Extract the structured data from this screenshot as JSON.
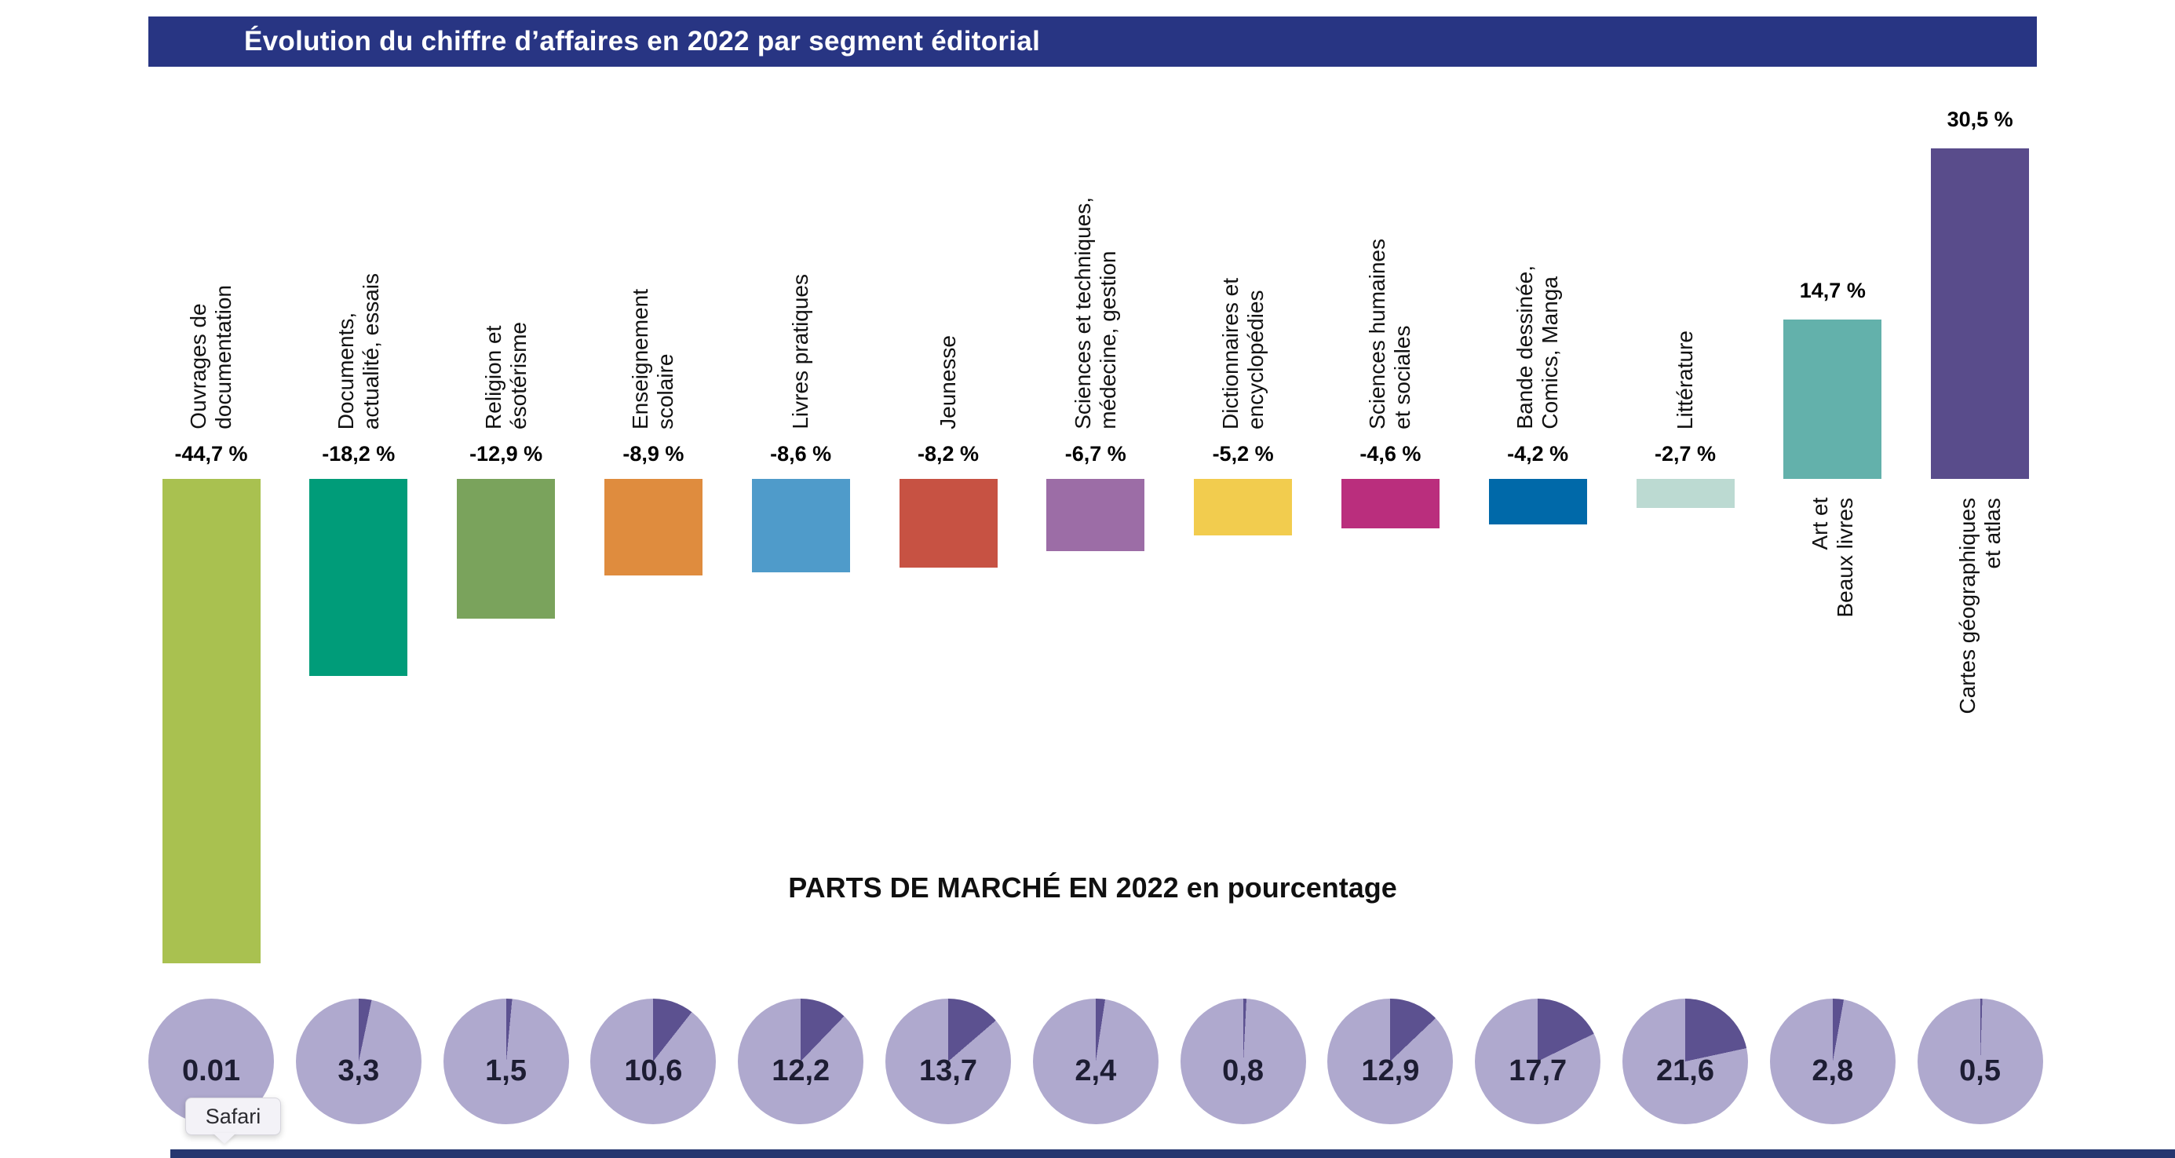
{
  "header": {
    "title": "Évolution du chiffre d’affaires en 2022 par segment éditorial",
    "bg_color": "#283583",
    "text_color": "#ffffff"
  },
  "chart_data": {
    "type": "bar",
    "title": "Évolution du chiffre d’affaires en 2022 par segment éditorial",
    "value_unit": "%",
    "baseline": 0,
    "pie_base_color": "#afa9ce",
    "pie_wedge_color": "#5c5190",
    "segments": [
      {
        "key": "ouvrages-de-documentation",
        "name_lines": [
          "Ouvrages de",
          "documentation"
        ],
        "evolution": -44.7,
        "evolution_label": "-44,7 %",
        "color": "#a9c150",
        "share": 0.01,
        "share_label": "0.01"
      },
      {
        "key": "documents-actualite-essais",
        "name_lines": [
          "Documents,",
          "actualité, essais"
        ],
        "evolution": -18.2,
        "evolution_label": "-18,2 %",
        "color": "#009c79",
        "share": 3.3,
        "share_label": "3,3"
      },
      {
        "key": "religion-et-esoterisme",
        "name_lines": [
          "Religion et",
          "ésotérisme"
        ],
        "evolution": -12.9,
        "evolution_label": "-12,9 %",
        "color": "#7aa35c",
        "share": 1.5,
        "share_label": "1,5"
      },
      {
        "key": "enseignement-scolaire",
        "name_lines": [
          "Enseignement",
          "scolaire"
        ],
        "evolution": -8.9,
        "evolution_label": "-8,9 %",
        "color": "#df8c3e",
        "share": 10.6,
        "share_label": "10,6"
      },
      {
        "key": "livres-pratiques",
        "name_lines": [
          "Livres pratiques"
        ],
        "evolution": -8.6,
        "evolution_label": "-8,6 %",
        "color": "#4f9bca",
        "share": 12.2,
        "share_label": "12,2"
      },
      {
        "key": "jeunesse",
        "name_lines": [
          "Jeunesse"
        ],
        "evolution": -8.2,
        "evolution_label": "-8,2 %",
        "color": "#c75243",
        "share": 13.7,
        "share_label": "13,7"
      },
      {
        "key": "sciences-techniques-medecine-gestion",
        "name_lines": [
          "Sciences et techniques,",
          "médecine, gestion"
        ],
        "evolution": -6.7,
        "evolution_label": "-6,7 %",
        "color": "#9c6da6",
        "share": 2.4,
        "share_label": "2,4"
      },
      {
        "key": "dictionnaires-encyclopedies",
        "name_lines": [
          "Dictionnaires et",
          "encyclopédies"
        ],
        "evolution": -5.2,
        "evolution_label": "-5,2 %",
        "color": "#f2cc4e",
        "share": 0.8,
        "share_label": "0,8"
      },
      {
        "key": "sciences-humaines-sociales",
        "name_lines": [
          "Sciences humaines",
          "et sociales"
        ],
        "evolution": -4.6,
        "evolution_label": "-4,6 %",
        "color": "#ba2e7d",
        "share": 12.9,
        "share_label": "12,9"
      },
      {
        "key": "bande-dessinee-comics-manga",
        "name_lines": [
          "Bande dessinée,",
          "Comics, Manga"
        ],
        "evolution": -4.2,
        "evolution_label": "-4,2 %",
        "color": "#0069a9",
        "share": 17.7,
        "share_label": "17,7"
      },
      {
        "key": "litterature",
        "name_lines": [
          "Littérature"
        ],
        "evolution": -2.7,
        "evolution_label": "-2,7 %",
        "color": "#bcdad2",
        "share": 21.6,
        "share_label": "21,6"
      },
      {
        "key": "art-et-beaux-livres",
        "name_lines": [
          "Art et",
          "Beaux livres"
        ],
        "evolution": 14.7,
        "evolution_label": "14,7 %",
        "color": "#63b1ab",
        "share": 2.8,
        "share_label": "2,8"
      },
      {
        "key": "cartes-geographiques-et-atlas",
        "name_lines": [
          "Cartes géographiques",
          "et atlas"
        ],
        "evolution": 30.5,
        "evolution_label": "30,5 %",
        "color": "#594c8b",
        "share": 0.5,
        "share_label": "0,5"
      }
    ]
  },
  "market_share": {
    "title": "PARTS DE MARCHÉ EN 2022 en pourcentage"
  },
  "dock_tooltip": {
    "label": "Safari"
  }
}
